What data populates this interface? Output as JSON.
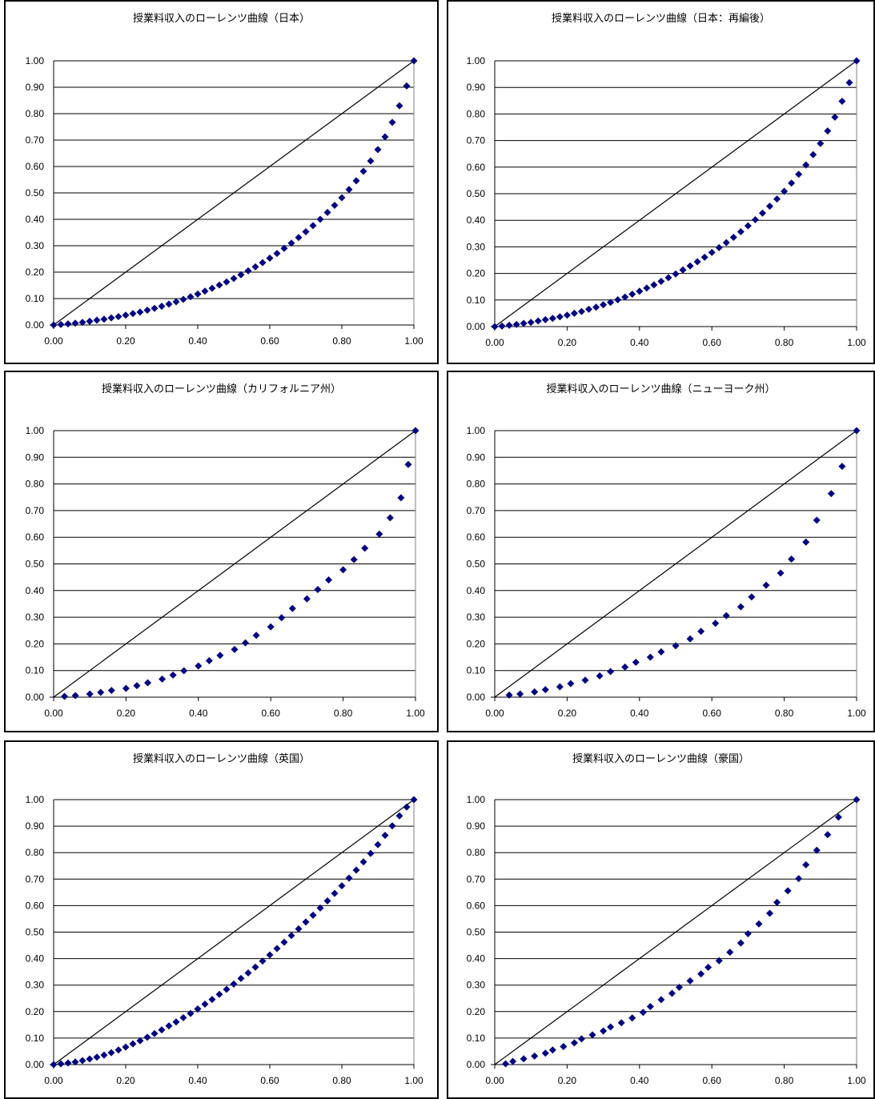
{
  "colors": {
    "marker": "#00007f",
    "grid": "#000000",
    "diagonal": "#000000"
  },
  "chart_data": [
    {
      "type": "scatter",
      "title": "授業料収入のローレンツ曲線（日本）",
      "xlim": [
        0,
        1
      ],
      "ylim": [
        0,
        1
      ],
      "xticks": [
        "0.00",
        "0.20",
        "0.40",
        "0.60",
        "0.80",
        "1.00"
      ],
      "yticks": [
        "0.00",
        "0.10",
        "0.20",
        "0.30",
        "0.40",
        "0.50",
        "0.60",
        "0.70",
        "0.80",
        "0.90",
        "1.00"
      ],
      "grid": true,
      "diagonal": true,
      "marker": "diamond",
      "points": [
        [
          0,
          0
        ],
        [
          0.02,
          0.002
        ],
        [
          0.04,
          0.004
        ],
        [
          0.06,
          0.007
        ],
        [
          0.08,
          0.01
        ],
        [
          0.1,
          0.014
        ],
        [
          0.12,
          0.018
        ],
        [
          0.14,
          0.022
        ],
        [
          0.16,
          0.027
        ],
        [
          0.18,
          0.032
        ],
        [
          0.2,
          0.037
        ],
        [
          0.22,
          0.043
        ],
        [
          0.24,
          0.049
        ],
        [
          0.26,
          0.056
        ],
        [
          0.28,
          0.063
        ],
        [
          0.3,
          0.071
        ],
        [
          0.32,
          0.079
        ],
        [
          0.34,
          0.088
        ],
        [
          0.36,
          0.097
        ],
        [
          0.38,
          0.107
        ],
        [
          0.4,
          0.117
        ],
        [
          0.42,
          0.128
        ],
        [
          0.44,
          0.139
        ],
        [
          0.46,
          0.151
        ],
        [
          0.48,
          0.163
        ],
        [
          0.5,
          0.176
        ],
        [
          0.52,
          0.19
        ],
        [
          0.54,
          0.205
        ],
        [
          0.56,
          0.22
        ],
        [
          0.58,
          0.236
        ],
        [
          0.6,
          0.253
        ],
        [
          0.62,
          0.271
        ],
        [
          0.64,
          0.29
        ],
        [
          0.66,
          0.31
        ],
        [
          0.68,
          0.331
        ],
        [
          0.7,
          0.353
        ],
        [
          0.72,
          0.376
        ],
        [
          0.74,
          0.4
        ],
        [
          0.76,
          0.426
        ],
        [
          0.78,
          0.453
        ],
        [
          0.8,
          0.482
        ],
        [
          0.82,
          0.513
        ],
        [
          0.84,
          0.546
        ],
        [
          0.86,
          0.582
        ],
        [
          0.88,
          0.621
        ],
        [
          0.9,
          0.664
        ],
        [
          0.92,
          0.712
        ],
        [
          0.94,
          0.767
        ],
        [
          0.96,
          0.83
        ],
        [
          0.98,
          0.905
        ],
        [
          1.0,
          1.0
        ]
      ]
    },
    {
      "type": "scatter",
      "title": "授業料収入のローレンツ曲線（日本：再編後）",
      "xlim": [
        0,
        1
      ],
      "ylim": [
        0,
        1
      ],
      "xticks": [
        "0.00",
        "0.20",
        "0.40",
        "0.60",
        "0.80",
        "1.00"
      ],
      "yticks": [
        "0.00",
        "0.10",
        "0.20",
        "0.30",
        "0.40",
        "0.50",
        "0.60",
        "0.70",
        "0.80",
        "0.90",
        "1.00"
      ],
      "grid": true,
      "diagonal": true,
      "marker": "diamond",
      "points": [
        [
          0,
          0
        ],
        [
          0.02,
          0.002
        ],
        [
          0.04,
          0.005
        ],
        [
          0.06,
          0.008
        ],
        [
          0.08,
          0.012
        ],
        [
          0.1,
          0.016
        ],
        [
          0.12,
          0.021
        ],
        [
          0.14,
          0.026
        ],
        [
          0.16,
          0.031
        ],
        [
          0.18,
          0.037
        ],
        [
          0.2,
          0.043
        ],
        [
          0.22,
          0.05
        ],
        [
          0.24,
          0.057
        ],
        [
          0.26,
          0.065
        ],
        [
          0.28,
          0.073
        ],
        [
          0.3,
          0.082
        ],
        [
          0.32,
          0.091
        ],
        [
          0.34,
          0.101
        ],
        [
          0.36,
          0.111
        ],
        [
          0.38,
          0.122
        ],
        [
          0.4,
          0.133
        ],
        [
          0.42,
          0.145
        ],
        [
          0.44,
          0.157
        ],
        [
          0.46,
          0.17
        ],
        [
          0.48,
          0.184
        ],
        [
          0.5,
          0.198
        ],
        [
          0.52,
          0.213
        ],
        [
          0.54,
          0.228
        ],
        [
          0.56,
          0.244
        ],
        [
          0.58,
          0.261
        ],
        [
          0.6,
          0.279
        ],
        [
          0.62,
          0.297
        ],
        [
          0.64,
          0.316
        ],
        [
          0.66,
          0.336
        ],
        [
          0.68,
          0.357
        ],
        [
          0.7,
          0.379
        ],
        [
          0.72,
          0.402
        ],
        [
          0.74,
          0.427
        ],
        [
          0.76,
          0.453
        ],
        [
          0.78,
          0.48
        ],
        [
          0.8,
          0.509
        ],
        [
          0.82,
          0.54
        ],
        [
          0.84,
          0.573
        ],
        [
          0.86,
          0.608
        ],
        [
          0.88,
          0.647
        ],
        [
          0.9,
          0.689
        ],
        [
          0.92,
          0.736
        ],
        [
          0.94,
          0.788
        ],
        [
          0.96,
          0.848
        ],
        [
          0.98,
          0.918
        ],
        [
          1.0,
          1.0
        ]
      ]
    },
    {
      "type": "scatter",
      "title": "授業料収入のローレンツ曲線（カリフォルニア州）",
      "xlim": [
        0,
        1
      ],
      "ylim": [
        0,
        1
      ],
      "xticks": [
        "0.00",
        "0.20",
        "0.40",
        "0.60",
        "0.80",
        "1.00"
      ],
      "yticks": [
        "0.00",
        "0.10",
        "0.20",
        "0.30",
        "0.40",
        "0.50",
        "0.60",
        "0.70",
        "0.80",
        "0.90",
        "1.00"
      ],
      "grid": true,
      "diagonal": true,
      "marker": "diamond",
      "points": [
        [
          0.03,
          0.003
        ],
        [
          0.06,
          0.006
        ],
        [
          0.1,
          0.012
        ],
        [
          0.13,
          0.018
        ],
        [
          0.16,
          0.025
        ],
        [
          0.2,
          0.033
        ],
        [
          0.23,
          0.043
        ],
        [
          0.26,
          0.054
        ],
        [
          0.3,
          0.068
        ],
        [
          0.33,
          0.083
        ],
        [
          0.36,
          0.099
        ],
        [
          0.4,
          0.117
        ],
        [
          0.43,
          0.137
        ],
        [
          0.46,
          0.157
        ],
        [
          0.5,
          0.179
        ],
        [
          0.53,
          0.204
        ],
        [
          0.56,
          0.232
        ],
        [
          0.6,
          0.264
        ],
        [
          0.63,
          0.298
        ],
        [
          0.66,
          0.333
        ],
        [
          0.7,
          0.369
        ],
        [
          0.73,
          0.404
        ],
        [
          0.76,
          0.44
        ],
        [
          0.8,
          0.478
        ],
        [
          0.83,
          0.516
        ],
        [
          0.86,
          0.559
        ],
        [
          0.9,
          0.612
        ],
        [
          0.93,
          0.673
        ],
        [
          0.96,
          0.748
        ],
        [
          0.98,
          0.873
        ],
        [
          1.0,
          1.0
        ]
      ]
    },
    {
      "type": "scatter",
      "title": "授業料収入のローレンツ曲線（ニューヨーク州）",
      "xlim": [
        0,
        1
      ],
      "ylim": [
        0,
        1
      ],
      "xticks": [
        "0.00",
        "0.20",
        "0.40",
        "0.60",
        "0.80",
        "1.00"
      ],
      "yticks": [
        "0.00",
        "0.10",
        "0.20",
        "0.30",
        "0.40",
        "0.50",
        "0.60",
        "0.70",
        "0.80",
        "0.90",
        "1.00"
      ],
      "grid": true,
      "diagonal": true,
      "marker": "diamond",
      "points": [
        [
          0.04,
          0.008
        ],
        [
          0.07,
          0.012
        ],
        [
          0.11,
          0.02
        ],
        [
          0.14,
          0.028
        ],
        [
          0.18,
          0.039
        ],
        [
          0.21,
          0.051
        ],
        [
          0.25,
          0.064
        ],
        [
          0.29,
          0.08
        ],
        [
          0.32,
          0.096
        ],
        [
          0.36,
          0.113
        ],
        [
          0.39,
          0.131
        ],
        [
          0.43,
          0.15
        ],
        [
          0.46,
          0.17
        ],
        [
          0.5,
          0.193
        ],
        [
          0.54,
          0.219
        ],
        [
          0.57,
          0.247
        ],
        [
          0.61,
          0.277
        ],
        [
          0.64,
          0.306
        ],
        [
          0.68,
          0.339
        ],
        [
          0.71,
          0.376
        ],
        [
          0.75,
          0.42
        ],
        [
          0.79,
          0.466
        ],
        [
          0.82,
          0.518
        ],
        [
          0.86,
          0.582
        ],
        [
          0.89,
          0.664
        ],
        [
          0.93,
          0.764
        ],
        [
          0.96,
          0.866
        ],
        [
          1.0,
          1.0
        ]
      ]
    },
    {
      "type": "scatter",
      "title": "授業料収入のローレンツ曲線（英国）",
      "xlim": [
        0,
        1
      ],
      "ylim": [
        0,
        1
      ],
      "xticks": [
        "0.00",
        "0.20",
        "0.40",
        "0.60",
        "0.80",
        "1.00"
      ],
      "yticks": [
        "0.00",
        "0.10",
        "0.20",
        "0.30",
        "0.40",
        "0.50",
        "0.60",
        "0.70",
        "0.80",
        "0.90",
        "1.00"
      ],
      "grid": true,
      "diagonal": true,
      "marker": "diamond",
      "points": [
        [
          0,
          0
        ],
        [
          0.02,
          0.003
        ],
        [
          0.04,
          0.006
        ],
        [
          0.06,
          0.01
        ],
        [
          0.08,
          0.015
        ],
        [
          0.1,
          0.021
        ],
        [
          0.12,
          0.028
        ],
        [
          0.14,
          0.036
        ],
        [
          0.16,
          0.045
        ],
        [
          0.18,
          0.055
        ],
        [
          0.2,
          0.066
        ],
        [
          0.22,
          0.078
        ],
        [
          0.24,
          0.09
        ],
        [
          0.26,
          0.103
        ],
        [
          0.28,
          0.117
        ],
        [
          0.3,
          0.131
        ],
        [
          0.32,
          0.146
        ],
        [
          0.34,
          0.161
        ],
        [
          0.36,
          0.177
        ],
        [
          0.38,
          0.193
        ],
        [
          0.4,
          0.21
        ],
        [
          0.42,
          0.228
        ],
        [
          0.44,
          0.246
        ],
        [
          0.46,
          0.265
        ],
        [
          0.48,
          0.284
        ],
        [
          0.5,
          0.304
        ],
        [
          0.52,
          0.325
        ],
        [
          0.54,
          0.346
        ],
        [
          0.56,
          0.368
        ],
        [
          0.58,
          0.391
        ],
        [
          0.6,
          0.414
        ],
        [
          0.62,
          0.438
        ],
        [
          0.64,
          0.462
        ],
        [
          0.66,
          0.487
        ],
        [
          0.68,
          0.512
        ],
        [
          0.7,
          0.538
        ],
        [
          0.72,
          0.564
        ],
        [
          0.74,
          0.591
        ],
        [
          0.76,
          0.618
        ],
        [
          0.78,
          0.646
        ],
        [
          0.8,
          0.675
        ],
        [
          0.82,
          0.704
        ],
        [
          0.84,
          0.734
        ],
        [
          0.86,
          0.765
        ],
        [
          0.88,
          0.797
        ],
        [
          0.9,
          0.83
        ],
        [
          0.92,
          0.865
        ],
        [
          0.94,
          0.901
        ],
        [
          0.96,
          0.939
        ],
        [
          0.98,
          0.972
        ],
        [
          1.0,
          1.0
        ]
      ]
    },
    {
      "type": "scatter",
      "title": "授業料収入のローレンツ曲線（豪国）",
      "xlim": [
        0,
        1
      ],
      "ylim": [
        0,
        1
      ],
      "xticks": [
        "0.00",
        "0.20",
        "0.40",
        "0.60",
        "0.80",
        "1.00"
      ],
      "yticks": [
        "0.00",
        "0.10",
        "0.20",
        "0.30",
        "0.40",
        "0.50",
        "0.60",
        "0.70",
        "0.80",
        "0.90",
        "1.00"
      ],
      "grid": true,
      "diagonal": true,
      "marker": "diamond",
      "points": [
        [
          0.03,
          0.003
        ],
        [
          0.05,
          0.012
        ],
        [
          0.08,
          0.022
        ],
        [
          0.11,
          0.032
        ],
        [
          0.14,
          0.043
        ],
        [
          0.16,
          0.055
        ],
        [
          0.19,
          0.068
        ],
        [
          0.22,
          0.082
        ],
        [
          0.24,
          0.097
        ],
        [
          0.27,
          0.112
        ],
        [
          0.3,
          0.127
        ],
        [
          0.32,
          0.142
        ],
        [
          0.35,
          0.158
        ],
        [
          0.38,
          0.176
        ],
        [
          0.41,
          0.197
        ],
        [
          0.43,
          0.219
        ],
        [
          0.46,
          0.245
        ],
        [
          0.49,
          0.269
        ],
        [
          0.51,
          0.292
        ],
        [
          0.54,
          0.316
        ],
        [
          0.57,
          0.342
        ],
        [
          0.59,
          0.367
        ],
        [
          0.62,
          0.392
        ],
        [
          0.65,
          0.424
        ],
        [
          0.68,
          0.459
        ],
        [
          0.7,
          0.494
        ],
        [
          0.73,
          0.531
        ],
        [
          0.76,
          0.571
        ],
        [
          0.78,
          0.612
        ],
        [
          0.81,
          0.656
        ],
        [
          0.84,
          0.702
        ],
        [
          0.86,
          0.754
        ],
        [
          0.89,
          0.809
        ],
        [
          0.92,
          0.868
        ],
        [
          0.95,
          0.934
        ],
        [
          1.0,
          1.0
        ]
      ]
    }
  ]
}
